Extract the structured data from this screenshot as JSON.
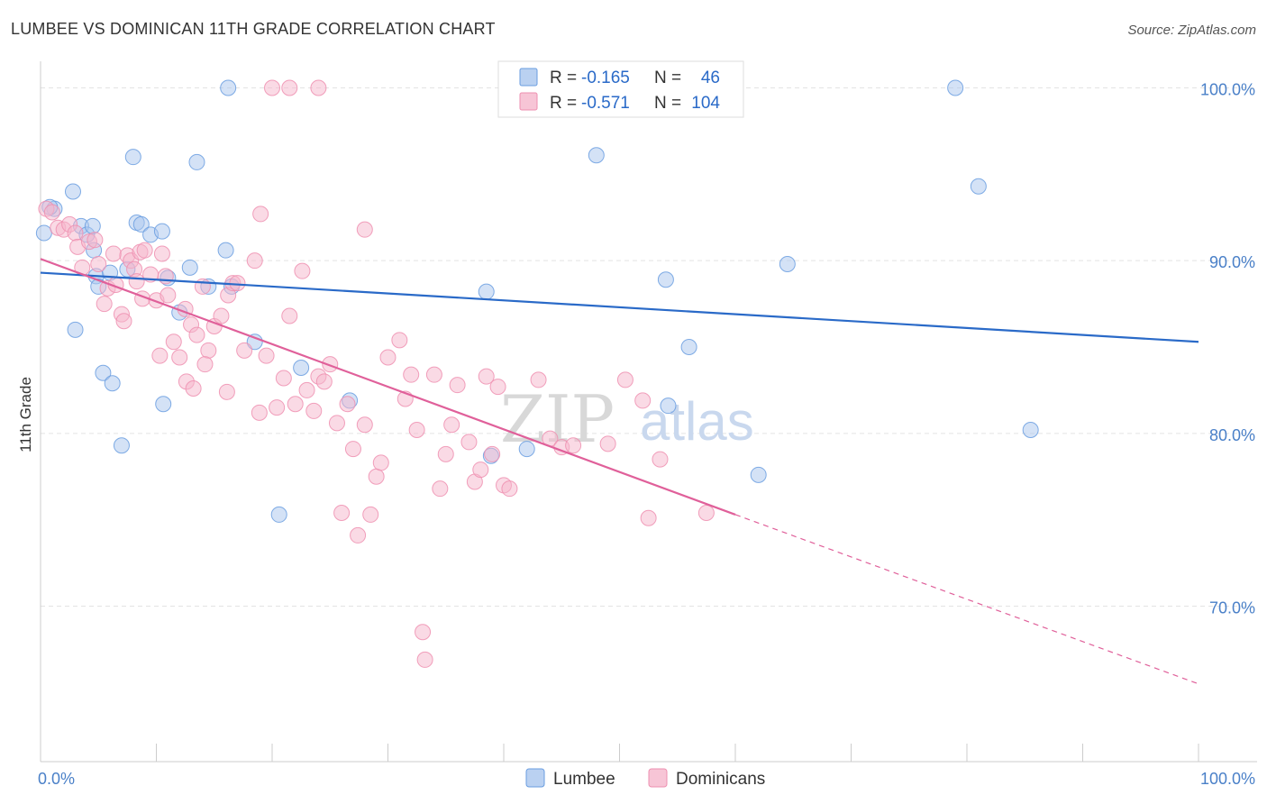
{
  "header": {
    "title": "LUMBEE VS DOMINICAN 11TH GRADE CORRELATION CHART",
    "source": "Source: ZipAtlas.com"
  },
  "watermark": {
    "zip": "ZIP",
    "atlas": "atlas"
  },
  "legend": {
    "rows": [
      {
        "r_label": "R = ",
        "r_value": "-0.165",
        "n_label": "N = ",
        "n_value": "46",
        "color": "#a9c6ee"
      },
      {
        "r_label": "R = ",
        "r_value": "-0.571",
        "n_label": "N = ",
        "n_value": "104",
        "color": "#f5b6cc"
      }
    ]
  },
  "bottom_legend": {
    "items": [
      {
        "label": "Lumbee",
        "color": "#a9c6ee"
      },
      {
        "label": "Dominicans",
        "color": "#f5b6cc"
      }
    ]
  },
  "chart_data": {
    "type": "scatter",
    "title": "LUMBEE VS DOMINICAN 11TH GRADE CORRELATION CHART",
    "xlabel": "",
    "ylabel": "11th Grade",
    "xlim": [
      0,
      100
    ],
    "ylim": [
      61,
      103
    ],
    "x_tick_labels": [
      "0.0%",
      "100.0%"
    ],
    "y_ticks": [
      {
        "value": 70,
        "label": "70.0%"
      },
      {
        "value": 80,
        "label": "80.0%"
      },
      {
        "value": 90,
        "label": "90.0%"
      },
      {
        "value": 100,
        "label": "100.0%"
      }
    ],
    "grid": true,
    "legend_position": "top-center",
    "series": [
      {
        "name": "Lumbee",
        "color": "#6a9de0",
        "fill": "#a9c6ee",
        "trend": {
          "x0": 0,
          "y0": 89.3,
          "x1": 100,
          "y1": 85.3,
          "color": "#2a6ac8"
        },
        "points": [
          [
            0.3,
            91.6
          ],
          [
            1.2,
            93.0
          ],
          [
            2.8,
            94.0
          ],
          [
            3.5,
            92.0
          ],
          [
            4.0,
            91.5
          ],
          [
            4.5,
            92.0
          ],
          [
            4.6,
            90.6
          ],
          [
            4.8,
            89.1
          ],
          [
            5.0,
            88.5
          ],
          [
            6.0,
            89.3
          ],
          [
            7.5,
            89.5
          ],
          [
            8.0,
            96.0
          ],
          [
            8.3,
            92.2
          ],
          [
            8.7,
            92.1
          ],
          [
            9.5,
            91.5
          ],
          [
            10.5,
            91.7
          ],
          [
            11.0,
            89.0
          ],
          [
            12.0,
            87.0
          ],
          [
            12.9,
            89.6
          ],
          [
            14.5,
            88.5
          ],
          [
            16.0,
            90.6
          ],
          [
            16.2,
            100.0
          ],
          [
            16.5,
            88.5
          ],
          [
            13.5,
            95.7
          ],
          [
            3.0,
            86.0
          ],
          [
            5.4,
            83.5
          ],
          [
            6.2,
            82.9
          ],
          [
            7.0,
            79.3
          ],
          [
            10.6,
            81.7
          ],
          [
            18.5,
            85.3
          ],
          [
            22.5,
            83.8
          ],
          [
            26.7,
            81.9
          ],
          [
            20.6,
            75.3
          ],
          [
            38.5,
            88.2
          ],
          [
            38.9,
            78.7
          ],
          [
            42.0,
            79.1
          ],
          [
            48.0,
            96.1
          ],
          [
            54.0,
            88.9
          ],
          [
            54.2,
            81.6
          ],
          [
            56.0,
            85.0
          ],
          [
            62.0,
            77.6
          ],
          [
            64.5,
            89.8
          ],
          [
            79.0,
            100.0
          ],
          [
            81.0,
            94.3
          ],
          [
            85.5,
            80.2
          ],
          [
            0.8,
            93.1
          ]
        ]
      },
      {
        "name": "Dominicans",
        "color": "#ee8fb0",
        "fill": "#f5b6cc",
        "trend": {
          "x0": 0,
          "y0": 90.1,
          "x1": 60,
          "y1": 75.3,
          "color": "#e0609a"
        },
        "trend_dashed": {
          "x0": 60,
          "y0": 75.3,
          "x1": 100,
          "y1": 65.5
        },
        "points": [
          [
            0.5,
            93.0
          ],
          [
            1.0,
            92.8
          ],
          [
            1.5,
            91.9
          ],
          [
            2.0,
            91.8
          ],
          [
            2.5,
            92.1
          ],
          [
            3.0,
            91.6
          ],
          [
            3.2,
            90.8
          ],
          [
            3.6,
            89.6
          ],
          [
            4.2,
            91.1
          ],
          [
            4.7,
            91.2
          ],
          [
            5.0,
            89.8
          ],
          [
            5.5,
            87.5
          ],
          [
            5.8,
            88.4
          ],
          [
            6.3,
            90.4
          ],
          [
            6.5,
            88.6
          ],
          [
            7.0,
            86.9
          ],
          [
            7.2,
            86.5
          ],
          [
            7.5,
            90.3
          ],
          [
            7.8,
            90.0
          ],
          [
            8.1,
            89.5
          ],
          [
            8.3,
            88.8
          ],
          [
            8.6,
            90.5
          ],
          [
            8.8,
            87.8
          ],
          [
            9.0,
            90.6
          ],
          [
            9.5,
            89.2
          ],
          [
            10.0,
            87.7
          ],
          [
            10.5,
            90.4
          ],
          [
            10.8,
            89.1
          ],
          [
            11.0,
            88.0
          ],
          [
            11.5,
            85.3
          ],
          [
            12.0,
            84.4
          ],
          [
            12.5,
            87.2
          ],
          [
            13.0,
            86.3
          ],
          [
            13.5,
            85.7
          ],
          [
            14.0,
            88.5
          ],
          [
            14.5,
            84.8
          ],
          [
            15.0,
            86.2
          ],
          [
            15.6,
            86.8
          ],
          [
            16.2,
            88.0
          ],
          [
            16.6,
            88.7
          ],
          [
            17.0,
            88.7
          ],
          [
            17.6,
            84.8
          ],
          [
            18.5,
            90.0
          ],
          [
            19.0,
            92.7
          ],
          [
            19.5,
            84.5
          ],
          [
            20.4,
            81.5
          ],
          [
            21.0,
            83.2
          ],
          [
            21.5,
            86.8
          ],
          [
            22.0,
            81.7
          ],
          [
            22.6,
            89.4
          ],
          [
            23.0,
            82.5
          ],
          [
            23.6,
            81.3
          ],
          [
            24.0,
            83.3
          ],
          [
            24.5,
            83.0
          ],
          [
            25.0,
            84.0
          ],
          [
            25.6,
            80.6
          ],
          [
            26.0,
            75.4
          ],
          [
            26.5,
            81.7
          ],
          [
            27.0,
            79.1
          ],
          [
            27.4,
            74.1
          ],
          [
            28.0,
            80.5
          ],
          [
            28.5,
            75.3
          ],
          [
            29.0,
            77.5
          ],
          [
            29.4,
            78.3
          ],
          [
            30.0,
            84.4
          ],
          [
            31.0,
            85.4
          ],
          [
            31.5,
            82.0
          ],
          [
            32.0,
            83.4
          ],
          [
            32.5,
            80.2
          ],
          [
            33.0,
            68.5
          ],
          [
            33.2,
            66.9
          ],
          [
            34.0,
            83.4
          ],
          [
            34.5,
            76.8
          ],
          [
            35.0,
            78.8
          ],
          [
            35.5,
            80.5
          ],
          [
            36.0,
            82.8
          ],
          [
            37.0,
            79.5
          ],
          [
            37.5,
            77.2
          ],
          [
            38.0,
            77.9
          ],
          [
            38.5,
            83.3
          ],
          [
            39.0,
            78.8
          ],
          [
            39.5,
            82.7
          ],
          [
            40.0,
            77.0
          ],
          [
            40.5,
            76.8
          ],
          [
            43.0,
            83.1
          ],
          [
            44.0,
            79.7
          ],
          [
            45.0,
            79.2
          ],
          [
            46.0,
            79.3
          ],
          [
            49.0,
            79.4
          ],
          [
            50.5,
            83.1
          ],
          [
            52.0,
            81.9
          ],
          [
            52.5,
            75.1
          ],
          [
            53.5,
            78.5
          ],
          [
            57.5,
            75.4
          ],
          [
            20.0,
            100.0
          ],
          [
            21.5,
            100.0
          ],
          [
            24.0,
            100.0
          ],
          [
            28.0,
            91.8
          ],
          [
            14.2,
            84.0
          ],
          [
            12.6,
            83.0
          ],
          [
            10.3,
            84.5
          ],
          [
            16.1,
            82.4
          ],
          [
            13.2,
            82.6
          ],
          [
            18.9,
            81.2
          ]
        ]
      }
    ]
  }
}
